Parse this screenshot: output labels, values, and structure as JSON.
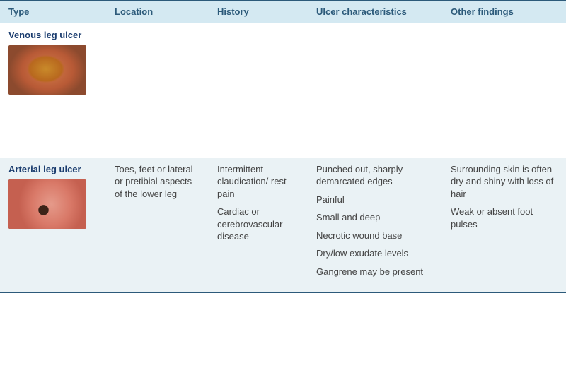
{
  "colors": {
    "border": "#2c5a7a",
    "header_bg": "#d4e9f2",
    "header_text": "#2c5a7a",
    "row_even_bg": "#ffffff",
    "row_odd_bg": "#eaf2f5",
    "type_label": "#1a3c6e",
    "body_text": "#444444"
  },
  "headers": {
    "type": "Type",
    "location": "Location",
    "history": "History",
    "ulcer": "Ulcer characteristics",
    "other": "Other findings"
  },
  "rows": [
    {
      "type_label": "Venous leg ulcer",
      "image_name": "venous-ulcer-photo",
      "location": [],
      "history": [],
      "ulcer": [],
      "other": []
    },
    {
      "type_label": "Arterial leg ulcer",
      "image_name": "arterial-ulcer-photo",
      "location": [
        "Toes, feet or lateral or pretibial aspects of the lower leg"
      ],
      "history": [
        "Intermittent claudication/ rest pain",
        "Cardiac or cerebrovascular disease"
      ],
      "ulcer": [
        "Punched out, sharply demarcated edges",
        "Painful",
        "Small and deep",
        "Necrotic wound base",
        "Dry/low exudate levels",
        "Gangrene may be present"
      ],
      "other": [
        "Surrounding skin is often dry and shiny with loss of hair",
        "Weak or absent foot pulses"
      ]
    }
  ]
}
